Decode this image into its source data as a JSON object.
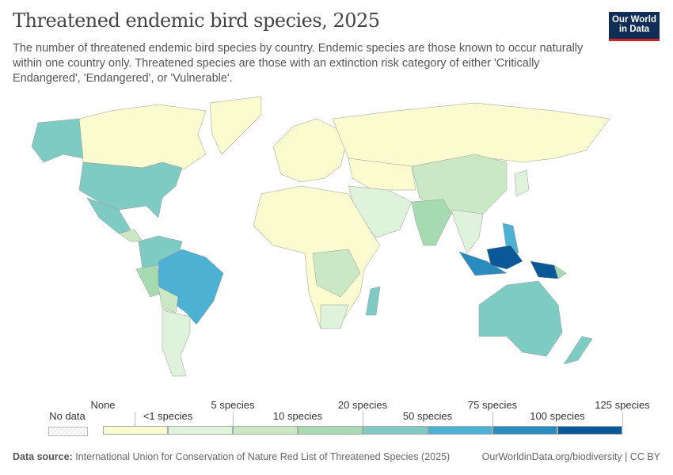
{
  "title": "Threatened endemic bird species, 2025",
  "subtitle": "The number of threatened endemic bird species by country. Endemic species are those known to occur naturally within one country only. Threatened species are those with an extinction risk category of either 'Critically Endangered', 'Endangered', or 'Vulnerable'.",
  "logo": {
    "line1": "Our World",
    "line2": "in Data"
  },
  "legend": {
    "no_data": "No data",
    "upper_labels": [
      "None",
      "5 species",
      "20 species",
      "75 species",
      "125 species"
    ],
    "lower_labels": [
      "<1 species",
      "10 species",
      "50 species",
      "100 species"
    ],
    "colors": [
      "#fbfbd0",
      "#dff2dc",
      "#c9e8c3",
      "#a6dbb2",
      "#7ecbc4",
      "#4cb1d3",
      "#2a8bbf",
      "#0a5898"
    ]
  },
  "footer": {
    "source_label": "Data source:",
    "source": "International Union for Conservation of Nature Red List of Threatened Species (2025)",
    "link": "OurWorldinData.org/biodiversity | CC BY"
  }
}
